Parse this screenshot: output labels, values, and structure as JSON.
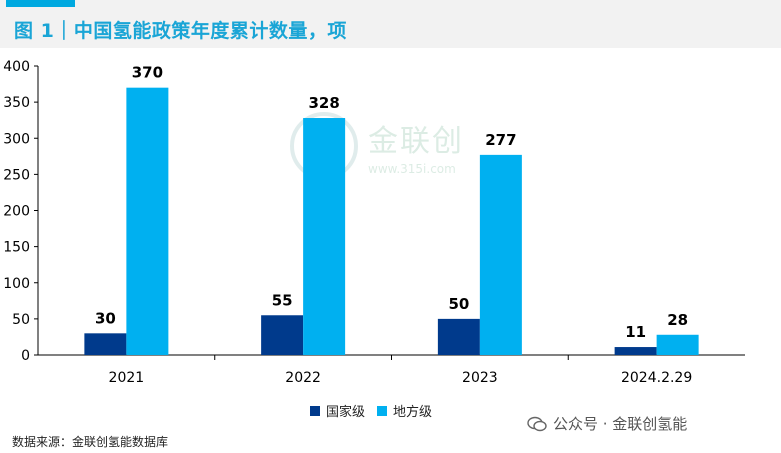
{
  "header": {
    "title": "图 1｜中国氢能政策年度累计数量，项"
  },
  "watermark": {
    "name": "金联创",
    "url": "www.315i.com",
    "wechat": "公众号 · 金联创氢能"
  },
  "source": "数据来源：金联创氢能数据库",
  "colors": {
    "national": "#003a8c",
    "local": "#00b0f0",
    "accent": "#00a9e0",
    "title": "#1aa5d6"
  },
  "chart_data": {
    "type": "bar",
    "title": "中国氢能政策年度累计数量，项",
    "categories": [
      "2021",
      "2022",
      "2023",
      "2024.2.29"
    ],
    "series": [
      {
        "name": "国家级",
        "values": [
          30,
          55,
          50,
          11
        ]
      },
      {
        "name": "地方级",
        "values": [
          370,
          328,
          277,
          28
        ]
      }
    ],
    "ylim": [
      0,
      400
    ],
    "yticks": [
      "0",
      "50",
      "100",
      "150",
      "200",
      "250",
      "300",
      "350",
      "400"
    ],
    "xlabel": "",
    "ylabel": "",
    "legend": "bottom-center",
    "grid": false
  }
}
